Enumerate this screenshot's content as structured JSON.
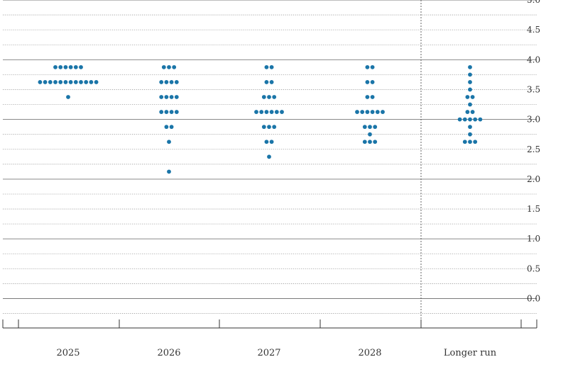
{
  "chart_data": {
    "type": "scatter",
    "title": "",
    "xlabel": "",
    "ylabel": "",
    "categories": [
      "2025",
      "2026",
      "2027",
      "2028",
      "Longer run"
    ],
    "y_ticks": [
      "0.0",
      "0.5",
      "1.0",
      "1.5",
      "2.0",
      "2.5",
      "3.0",
      "3.5",
      "4.0",
      "4.5",
      "5.0"
    ],
    "ylim": [
      -0.25,
      5.0
    ],
    "grid": true,
    "dot_color": "#1a75a8",
    "dots": [
      {
        "category": "2025",
        "points": [
          {
            "y": 3.875,
            "count": 6
          },
          {
            "y": 3.625,
            "count": 12
          },
          {
            "y": 3.375,
            "count": 1
          }
        ]
      },
      {
        "category": "2026",
        "points": [
          {
            "y": 3.875,
            "count": 3
          },
          {
            "y": 3.625,
            "count": 4
          },
          {
            "y": 3.375,
            "count": 4
          },
          {
            "y": 3.125,
            "count": 4
          },
          {
            "y": 2.875,
            "count": 2
          },
          {
            "y": 2.625,
            "count": 1
          },
          {
            "y": 2.125,
            "count": 1
          }
        ]
      },
      {
        "category": "2027",
        "points": [
          {
            "y": 3.875,
            "count": 2
          },
          {
            "y": 3.625,
            "count": 2
          },
          {
            "y": 3.375,
            "count": 3
          },
          {
            "y": 3.125,
            "count": 6
          },
          {
            "y": 2.875,
            "count": 3
          },
          {
            "y": 2.625,
            "count": 2
          },
          {
            "y": 2.375,
            "count": 1
          }
        ]
      },
      {
        "category": "2028",
        "points": [
          {
            "y": 3.875,
            "count": 2
          },
          {
            "y": 3.625,
            "count": 2
          },
          {
            "y": 3.375,
            "count": 2
          },
          {
            "y": 3.125,
            "count": 6
          },
          {
            "y": 2.875,
            "count": 3
          },
          {
            "y": 2.75,
            "count": 1
          },
          {
            "y": 2.625,
            "count": 3
          }
        ]
      },
      {
        "category": "Longer run",
        "points": [
          {
            "y": 3.875,
            "count": 1
          },
          {
            "y": 3.75,
            "count": 1
          },
          {
            "y": 3.625,
            "count": 1
          },
          {
            "y": 3.5,
            "count": 1
          },
          {
            "y": 3.375,
            "count": 2
          },
          {
            "y": 3.25,
            "count": 1
          },
          {
            "y": 3.125,
            "count": 2
          },
          {
            "y": 3.0,
            "count": 5
          },
          {
            "y": 2.875,
            "count": 1
          },
          {
            "y": 2.75,
            "count": 1
          },
          {
            "y": 2.625,
            "count": 3
          }
        ]
      }
    ]
  }
}
